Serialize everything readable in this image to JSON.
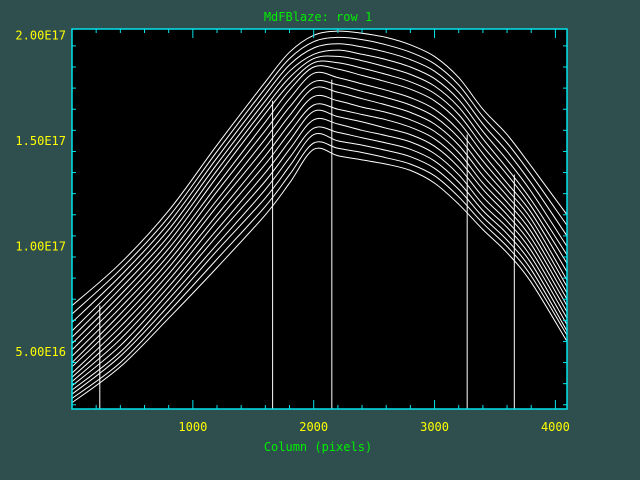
{
  "chart_data": {
    "type": "line",
    "title": "MdFBlaze: row 1",
    "xlabel": "Column (pixels)",
    "ylabel": "",
    "xlim": [
      0,
      4096
    ],
    "ylim": [
      2.3e+16,
      2.03e+17
    ],
    "xticks": [
      {
        "value": 1000,
        "label": "1000"
      },
      {
        "value": 2000,
        "label": "2000"
      },
      {
        "value": 3000,
        "label": "3000"
      },
      {
        "value": 4000,
        "label": "4000"
      }
    ],
    "yticks": [
      {
        "value": 5e+16,
        "label": "5.00E16"
      },
      {
        "value": 1e+17,
        "label": "1.00E17"
      },
      {
        "value": 1.5e+17,
        "label": "1.50E17"
      },
      {
        "value": 2e+17,
        "label": "2.00E17"
      }
    ],
    "grid": false,
    "legend": "none",
    "colors": {
      "background": "#2f4f4f",
      "plot_background": "#000000",
      "axes": "#00e5ee",
      "series": "#ffffff",
      "title": "#00ee00",
      "tick_labels": "#ffff00"
    },
    "x": [
      0,
      400,
      800,
      1200,
      1600,
      1800,
      2000,
      2200,
      2400,
      2600,
      2800,
      3000,
      3200,
      3400,
      3600,
      3800,
      4096
    ],
    "series": [
      {
        "values": [
          2.6e+16,
          4.3e+16,
          6.6e+16,
          9e+16,
          1.15e+17,
          1.3e+17,
          1.46e+17,
          1.43e+17,
          1.41e+17,
          1.39e+17,
          1.36e+17,
          1.3e+17,
          1.2e+17,
          1.08e+17,
          9.7e+16,
          8.3e+16,
          5.5e+16
        ]
      },
      {
        "values": [
          2.8e+16,
          4.5e+16,
          6.9e+16,
          9.4e+16,
          1.19e+17,
          1.34e+17,
          1.49e+17,
          1.465e+17,
          1.445e+17,
          1.42e+17,
          1.39e+17,
          1.335e+17,
          1.235e+17,
          1.11e+17,
          1e+17,
          8.6e+16,
          5.8e+16
        ]
      },
      {
        "values": [
          3e+16,
          4.8e+16,
          7.2e+16,
          9.8e+16,
          1.23e+17,
          1.38e+17,
          1.53e+17,
          1.5e+17,
          1.48e+17,
          1.455e+17,
          1.425e+17,
          1.37e+17,
          1.27e+17,
          1.14e+17,
          1.03e+17,
          8.9e+16,
          6e+16
        ]
      },
      {
        "values": [
          3.2e+16,
          5e+16,
          7.5e+16,
          1.01e+17,
          1.27e+17,
          1.42e+17,
          1.56e+17,
          1.54e+17,
          1.515e+17,
          1.49e+17,
          1.46e+17,
          1.405e+17,
          1.305e+17,
          1.17e+17,
          1.06e+17,
          9.2e+16,
          6.3e+16
        ]
      },
      {
        "values": [
          3.4e+16,
          5.3e+16,
          7.8e+16,
          1.05e+17,
          1.31e+17,
          1.46e+17,
          1.6e+17,
          1.58e+17,
          1.55e+17,
          1.525e+17,
          1.495e+17,
          1.44e+17,
          1.34e+17,
          1.2e+17,
          1.09e+17,
          9.5e+16,
          6.6e+16
        ]
      },
      {
        "values": [
          3.6e+16,
          5.6e+16,
          8.1e+16,
          1.08e+17,
          1.35e+17,
          1.5e+17,
          1.64e+17,
          1.615e+17,
          1.59e+17,
          1.56e+17,
          1.53e+17,
          1.475e+17,
          1.375e+17,
          1.235e+17,
          1.12e+17,
          9.8e+16,
          6.9e+16
        ]
      },
      {
        "values": [
          3.8e+16,
          5.9e+16,
          8.4e+16,
          1.12e+17,
          1.39e+17,
          1.54e+17,
          1.67e+17,
          1.65e+17,
          1.625e+17,
          1.6e+17,
          1.565e+17,
          1.51e+17,
          1.41e+17,
          1.27e+17,
          1.15e+17,
          1.01e+17,
          7.2e+16
        ]
      },
      {
        "values": [
          4e+16,
          6.2e+16,
          8.7e+16,
          1.15e+17,
          1.43e+17,
          1.58e+17,
          1.71e+17,
          1.69e+17,
          1.66e+17,
          1.635e+17,
          1.6e+17,
          1.545e+17,
          1.445e+17,
          1.3e+17,
          1.18e+17,
          1.04e+17,
          7.5e+16
        ]
      },
      {
        "values": [
          4.3e+16,
          6.5e+16,
          9e+16,
          1.19e+17,
          1.47e+17,
          1.62e+17,
          1.75e+17,
          1.73e+17,
          1.7e+17,
          1.67e+17,
          1.635e+17,
          1.58e+17,
          1.48e+17,
          1.335e+17,
          1.21e+17,
          1.07e+17,
          7.8e+16
        ]
      },
      {
        "values": [
          4.5e+16,
          6.8e+16,
          9.3e+16,
          1.22e+17,
          1.51e+17,
          1.66e+17,
          1.78e+17,
          1.765e+17,
          1.735e+17,
          1.705e+17,
          1.67e+17,
          1.615e+17,
          1.515e+17,
          1.37e+17,
          1.24e+17,
          1.1e+17,
          8.1e+16
        ]
      },
      {
        "values": [
          4.8e+16,
          7.1e+16,
          9.6e+16,
          1.26e+17,
          1.55e+17,
          1.7e+17,
          1.82e+17,
          1.8e+17,
          1.77e+17,
          1.74e+17,
          1.705e+17,
          1.65e+17,
          1.55e+17,
          1.405e+17,
          1.27e+17,
          1.13e+17,
          8.4e+16
        ]
      },
      {
        "values": [
          5.1e+16,
          7.4e+16,
          9.9e+16,
          1.29e+17,
          1.59e+17,
          1.74e+17,
          1.85e+17,
          1.84e+17,
          1.81e+17,
          1.78e+17,
          1.745e+17,
          1.69e+17,
          1.59e+17,
          1.44e+17,
          1.3e+17,
          1.16e+17,
          8.8e+16
        ]
      },
      {
        "values": [
          5.4e+16,
          7.7e+16,
          1.02e+17,
          1.33e+17,
          1.63e+17,
          1.77e+17,
          1.87e+17,
          1.87e+17,
          1.845e+17,
          1.815e+17,
          1.78e+17,
          1.725e+17,
          1.625e+17,
          1.475e+17,
          1.34e+17,
          1.19e+17,
          9.2e+16
        ]
      },
      {
        "values": [
          5.7e+16,
          8e+16,
          1.05e+17,
          1.36e+17,
          1.66e+17,
          1.8e+17,
          1.89e+17,
          1.9e+17,
          1.88e+17,
          1.85e+17,
          1.815e+17,
          1.76e+17,
          1.66e+17,
          1.51e+17,
          1.37e+17,
          1.22e+17,
          9.6e+16
        ]
      },
      {
        "values": [
          6e+16,
          8.3e+16,
          1.08e+17,
          1.39e+17,
          1.69e+17,
          1.83e+17,
          1.91e+17,
          1.93e+17,
          1.91e+17,
          1.885e+17,
          1.85e+17,
          1.795e+17,
          1.695e+17,
          1.545e+17,
          1.41e+17,
          1.26e+17,
          1e+17
        ]
      },
      {
        "values": [
          6.4e+16,
          8.6e+16,
          1.11e+17,
          1.42e+17,
          1.72e+17,
          1.86e+17,
          1.94e+17,
          1.96e+17,
          1.945e+17,
          1.92e+17,
          1.885e+17,
          1.83e+17,
          1.73e+17,
          1.58e+17,
          1.45e+17,
          1.3e+17,
          1.05e+17
        ]
      },
      {
        "values": [
          6.8e+16,
          8.9e+16,
          1.14e+17,
          1.45e+17,
          1.75e+17,
          1.89e+17,
          1.97e+17,
          1.99e+17,
          1.98e+17,
          1.955e+17,
          1.92e+17,
          1.865e+17,
          1.765e+17,
          1.615e+17,
          1.49e+17,
          1.34e+17,
          1.1e+17
        ]
      },
      {
        "values": [
          7.2e+16,
          9.2e+16,
          1.17e+17,
          1.48e+17,
          1.78e+17,
          1.92e+17,
          2e+17,
          2.02e+17,
          2.01e+17,
          1.99e+17,
          1.955e+17,
          1.9e+17,
          1.8e+17,
          1.65e+17,
          1.53e+17,
          1.38e+17,
          1.15e+17
        ]
      }
    ],
    "vertical_lines": [
      {
        "x": 230,
        "y": 7.2e+16
      },
      {
        "x": 1660,
        "y": 1.69e+17
      },
      {
        "x": 2150,
        "y": 1.79e+17
      },
      {
        "x": 3270,
        "y": 1.53e+17
      },
      {
        "x": 3660,
        "y": 1.34e+17
      }
    ]
  }
}
